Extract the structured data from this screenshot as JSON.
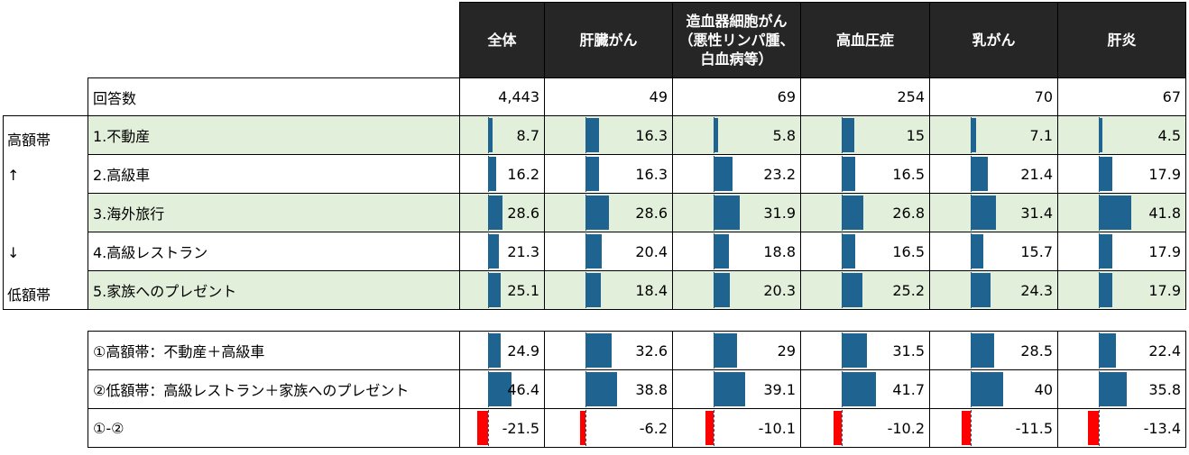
{
  "columns": [
    "全体",
    "肝臓がん",
    "造血器細胞がん\n（悪性リンパ腫、\n白血病等）",
    "高血圧症",
    "乳がん",
    "肝炎"
  ],
  "respondents": {
    "label": "回答数",
    "values": [
      "4,443",
      "49",
      "69",
      "254",
      "70",
      "67"
    ]
  },
  "side_labels": [
    "高額帯",
    "↑",
    "↓",
    "低額帯"
  ],
  "colors": {
    "bar_positive": "#1f6391",
    "bar_negative": "#ff0000",
    "row_highlight": "#e2efda",
    "header_bg": "#262626"
  },
  "chart_data": {
    "type": "table",
    "rows": [
      {
        "label": "1.不動産",
        "values": [
          8.7,
          16.3,
          5.8,
          15,
          7.1,
          4.5
        ]
      },
      {
        "label": "2.高級車",
        "values": [
          16.2,
          16.3,
          23.2,
          16.5,
          21.4,
          17.9
        ]
      },
      {
        "label": "3.海外旅行",
        "values": [
          28.6,
          28.6,
          31.9,
          26.8,
          31.4,
          41.8
        ]
      },
      {
        "label": "4.高級レストラン",
        "values": [
          21.3,
          20.4,
          18.8,
          16.5,
          15.7,
          17.9
        ]
      },
      {
        "label": "5.家族へのプレゼント",
        "values": [
          25.1,
          18.4,
          20.3,
          25.2,
          24.3,
          17.9
        ]
      }
    ],
    "summary_rows": [
      {
        "label": "①高額帯：不動産＋高級車",
        "values": [
          24.9,
          32.6,
          29,
          31.5,
          28.5,
          22.4
        ]
      },
      {
        "label": "②低額帯：高級レストラン＋家族へのプレゼント",
        "values": [
          46.4,
          38.8,
          39.1,
          41.7,
          40,
          35.8
        ]
      },
      {
        "label": "①-②",
        "values": [
          -21.5,
          -6.2,
          -10.1,
          -10.2,
          -11.5,
          -13.4
        ]
      }
    ]
  }
}
